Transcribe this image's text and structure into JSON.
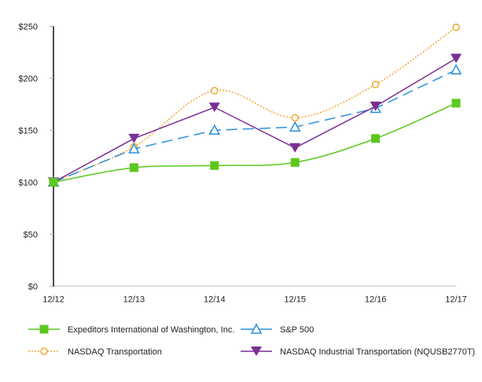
{
  "chart_data": {
    "type": "line",
    "categories": [
      "12/12",
      "12/13",
      "12/14",
      "12/15",
      "12/16",
      "12/17"
    ],
    "y_ticks": [
      "$0",
      "$50",
      "$100",
      "$150",
      "$200",
      "$250"
    ],
    "ylim": [
      0,
      250
    ],
    "grid": false,
    "legend_placement": "bottom",
    "series": [
      {
        "name": "Expeditors International of Washington, Inc.",
        "values": [
          100,
          114,
          116,
          119,
          142,
          176
        ],
        "color": "#5cc81e",
        "marker": "square",
        "style": "solid",
        "smooth": true
      },
      {
        "name": "S&P 500",
        "values": [
          100,
          132,
          150,
          153,
          171,
          208
        ],
        "color": "#2a8fdc",
        "marker": "triangle-up-open",
        "style": "dashed",
        "smooth": false
      },
      {
        "name": "NASDAQ Transportation",
        "values": [
          100,
          134,
          188,
          162,
          194,
          249
        ],
        "color": "#f0a830",
        "marker": "circle-open",
        "style": "dotted",
        "smooth": true
      },
      {
        "name": "NASDAQ Industrial Transportation (NQUSB2770T)",
        "values": [
          100,
          142,
          172,
          133,
          173,
          219
        ],
        "color": "#7b2f94",
        "marker": "triangle-down",
        "style": "solid",
        "smooth": false
      }
    ]
  }
}
